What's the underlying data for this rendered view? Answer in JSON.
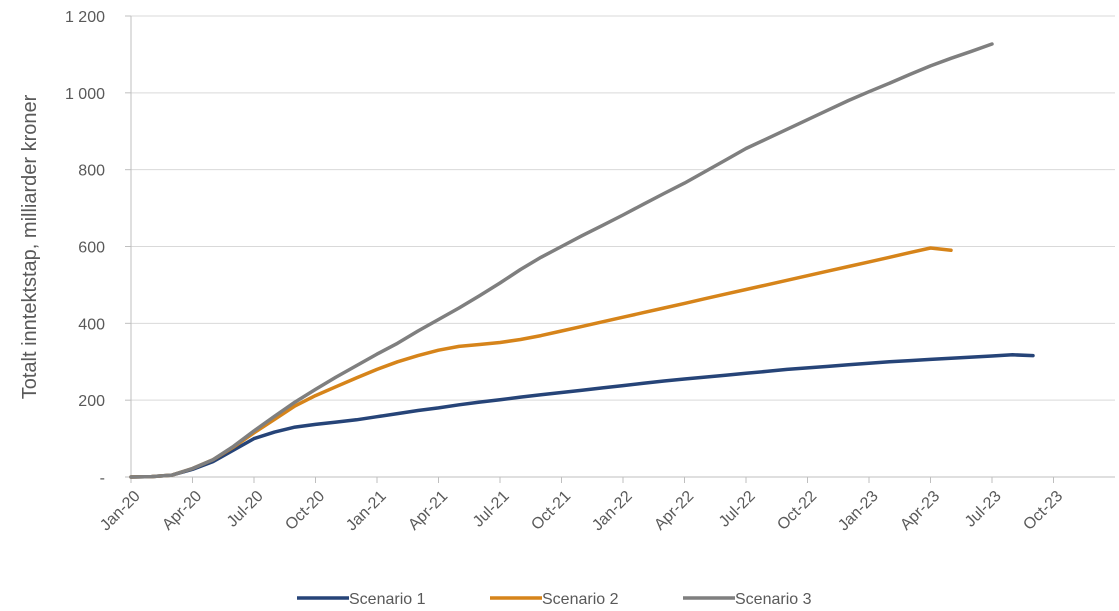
{
  "chart_data": {
    "type": "line",
    "title": "",
    "xlabel": "",
    "ylabel": "Totalt inntektstap, milliarder kroner",
    "ylim": [
      0,
      1200
    ],
    "yticks": [
      0,
      200,
      400,
      600,
      800,
      1000,
      1200
    ],
    "ytick_labels": [
      "-",
      "200",
      "400",
      "600",
      "800",
      "1 000",
      "1 200"
    ],
    "xtick_labels": [
      "Jan-20",
      "Apr-20",
      "Jul-20",
      "Oct-20",
      "Jan-21",
      "Apr-21",
      "Jul-21",
      "Oct-21",
      "Jan-22",
      "Apr-22",
      "Jul-22",
      "Oct-22",
      "Jan-23",
      "Apr-23",
      "Jul-23",
      "Oct-23"
    ],
    "x_month_start": 0,
    "x_month_end": 48,
    "grid": "horizontal",
    "legend_position": "bottom",
    "series": [
      {
        "name": "Scenario 1",
        "color": "#264478",
        "points": [
          [
            0,
            0
          ],
          [
            1,
            1
          ],
          [
            2,
            5
          ],
          [
            3,
            20
          ],
          [
            4,
            40
          ],
          [
            5,
            70
          ],
          [
            6,
            100
          ],
          [
            7,
            117
          ],
          [
            8,
            130
          ],
          [
            9,
            137
          ],
          [
            10,
            143
          ],
          [
            11,
            149
          ],
          [
            12,
            157
          ],
          [
            13,
            165
          ],
          [
            14,
            173
          ],
          [
            15,
            180
          ],
          [
            16,
            188
          ],
          [
            17,
            195
          ],
          [
            18,
            201
          ],
          [
            19,
            208
          ],
          [
            20,
            214
          ],
          [
            21,
            220
          ],
          [
            22,
            226
          ],
          [
            23,
            232
          ],
          [
            24,
            238
          ],
          [
            25,
            244
          ],
          [
            26,
            250
          ],
          [
            27,
            255
          ],
          [
            28,
            260
          ],
          [
            29,
            265
          ],
          [
            30,
            270
          ],
          [
            31,
            275
          ],
          [
            32,
            280
          ],
          [
            33,
            284
          ],
          [
            34,
            288
          ],
          [
            35,
            292
          ],
          [
            36,
            296
          ],
          [
            37,
            300
          ],
          [
            38,
            303
          ],
          [
            39,
            306
          ],
          [
            40,
            309
          ],
          [
            41,
            312
          ],
          [
            42,
            315
          ],
          [
            43,
            318
          ],
          [
            44,
            316
          ]
        ]
      },
      {
        "name": "Scenario 2",
        "color": "#D6841A",
        "points": [
          [
            0,
            0
          ],
          [
            1,
            1
          ],
          [
            2,
            5
          ],
          [
            3,
            22
          ],
          [
            4,
            45
          ],
          [
            5,
            78
          ],
          [
            6,
            115
          ],
          [
            7,
            150
          ],
          [
            8,
            185
          ],
          [
            9,
            212
          ],
          [
            10,
            235
          ],
          [
            11,
            258
          ],
          [
            12,
            280
          ],
          [
            13,
            300
          ],
          [
            14,
            316
          ],
          [
            15,
            330
          ],
          [
            16,
            340
          ],
          [
            17,
            345
          ],
          [
            18,
            350
          ],
          [
            19,
            358
          ],
          [
            20,
            368
          ],
          [
            21,
            380
          ],
          [
            22,
            392
          ],
          [
            23,
            404
          ],
          [
            24,
            416
          ],
          [
            25,
            428
          ],
          [
            26,
            440
          ],
          [
            27,
            452
          ],
          [
            28,
            464
          ],
          [
            29,
            476
          ],
          [
            30,
            488
          ],
          [
            31,
            500
          ],
          [
            32,
            512
          ],
          [
            33,
            524
          ],
          [
            34,
            536
          ],
          [
            35,
            548
          ],
          [
            36,
            560
          ],
          [
            37,
            572
          ],
          [
            38,
            584
          ],
          [
            39,
            596
          ],
          [
            40,
            590
          ]
        ]
      },
      {
        "name": "Scenario 3",
        "color": "#7F7F7F",
        "points": [
          [
            0,
            0
          ],
          [
            1,
            1
          ],
          [
            2,
            5
          ],
          [
            3,
            22
          ],
          [
            4,
            45
          ],
          [
            5,
            80
          ],
          [
            6,
            120
          ],
          [
            7,
            158
          ],
          [
            8,
            195
          ],
          [
            9,
            228
          ],
          [
            10,
            260
          ],
          [
            11,
            290
          ],
          [
            12,
            320
          ],
          [
            13,
            348
          ],
          [
            14,
            380
          ],
          [
            15,
            410
          ],
          [
            16,
            440
          ],
          [
            17,
            472
          ],
          [
            18,
            505
          ],
          [
            19,
            540
          ],
          [
            20,
            572
          ],
          [
            21,
            600
          ],
          [
            22,
            628
          ],
          [
            23,
            655
          ],
          [
            24,
            682
          ],
          [
            25,
            710
          ],
          [
            26,
            738
          ],
          [
            27,
            765
          ],
          [
            28,
            795
          ],
          [
            29,
            825
          ],
          [
            30,
            855
          ],
          [
            31,
            880
          ],
          [
            32,
            905
          ],
          [
            33,
            930
          ],
          [
            34,
            955
          ],
          [
            35,
            980
          ],
          [
            36,
            1003
          ],
          [
            37,
            1025
          ],
          [
            38,
            1048
          ],
          [
            39,
            1070
          ],
          [
            40,
            1090
          ],
          [
            41,
            1108
          ],
          [
            42,
            1127
          ]
        ]
      }
    ]
  }
}
